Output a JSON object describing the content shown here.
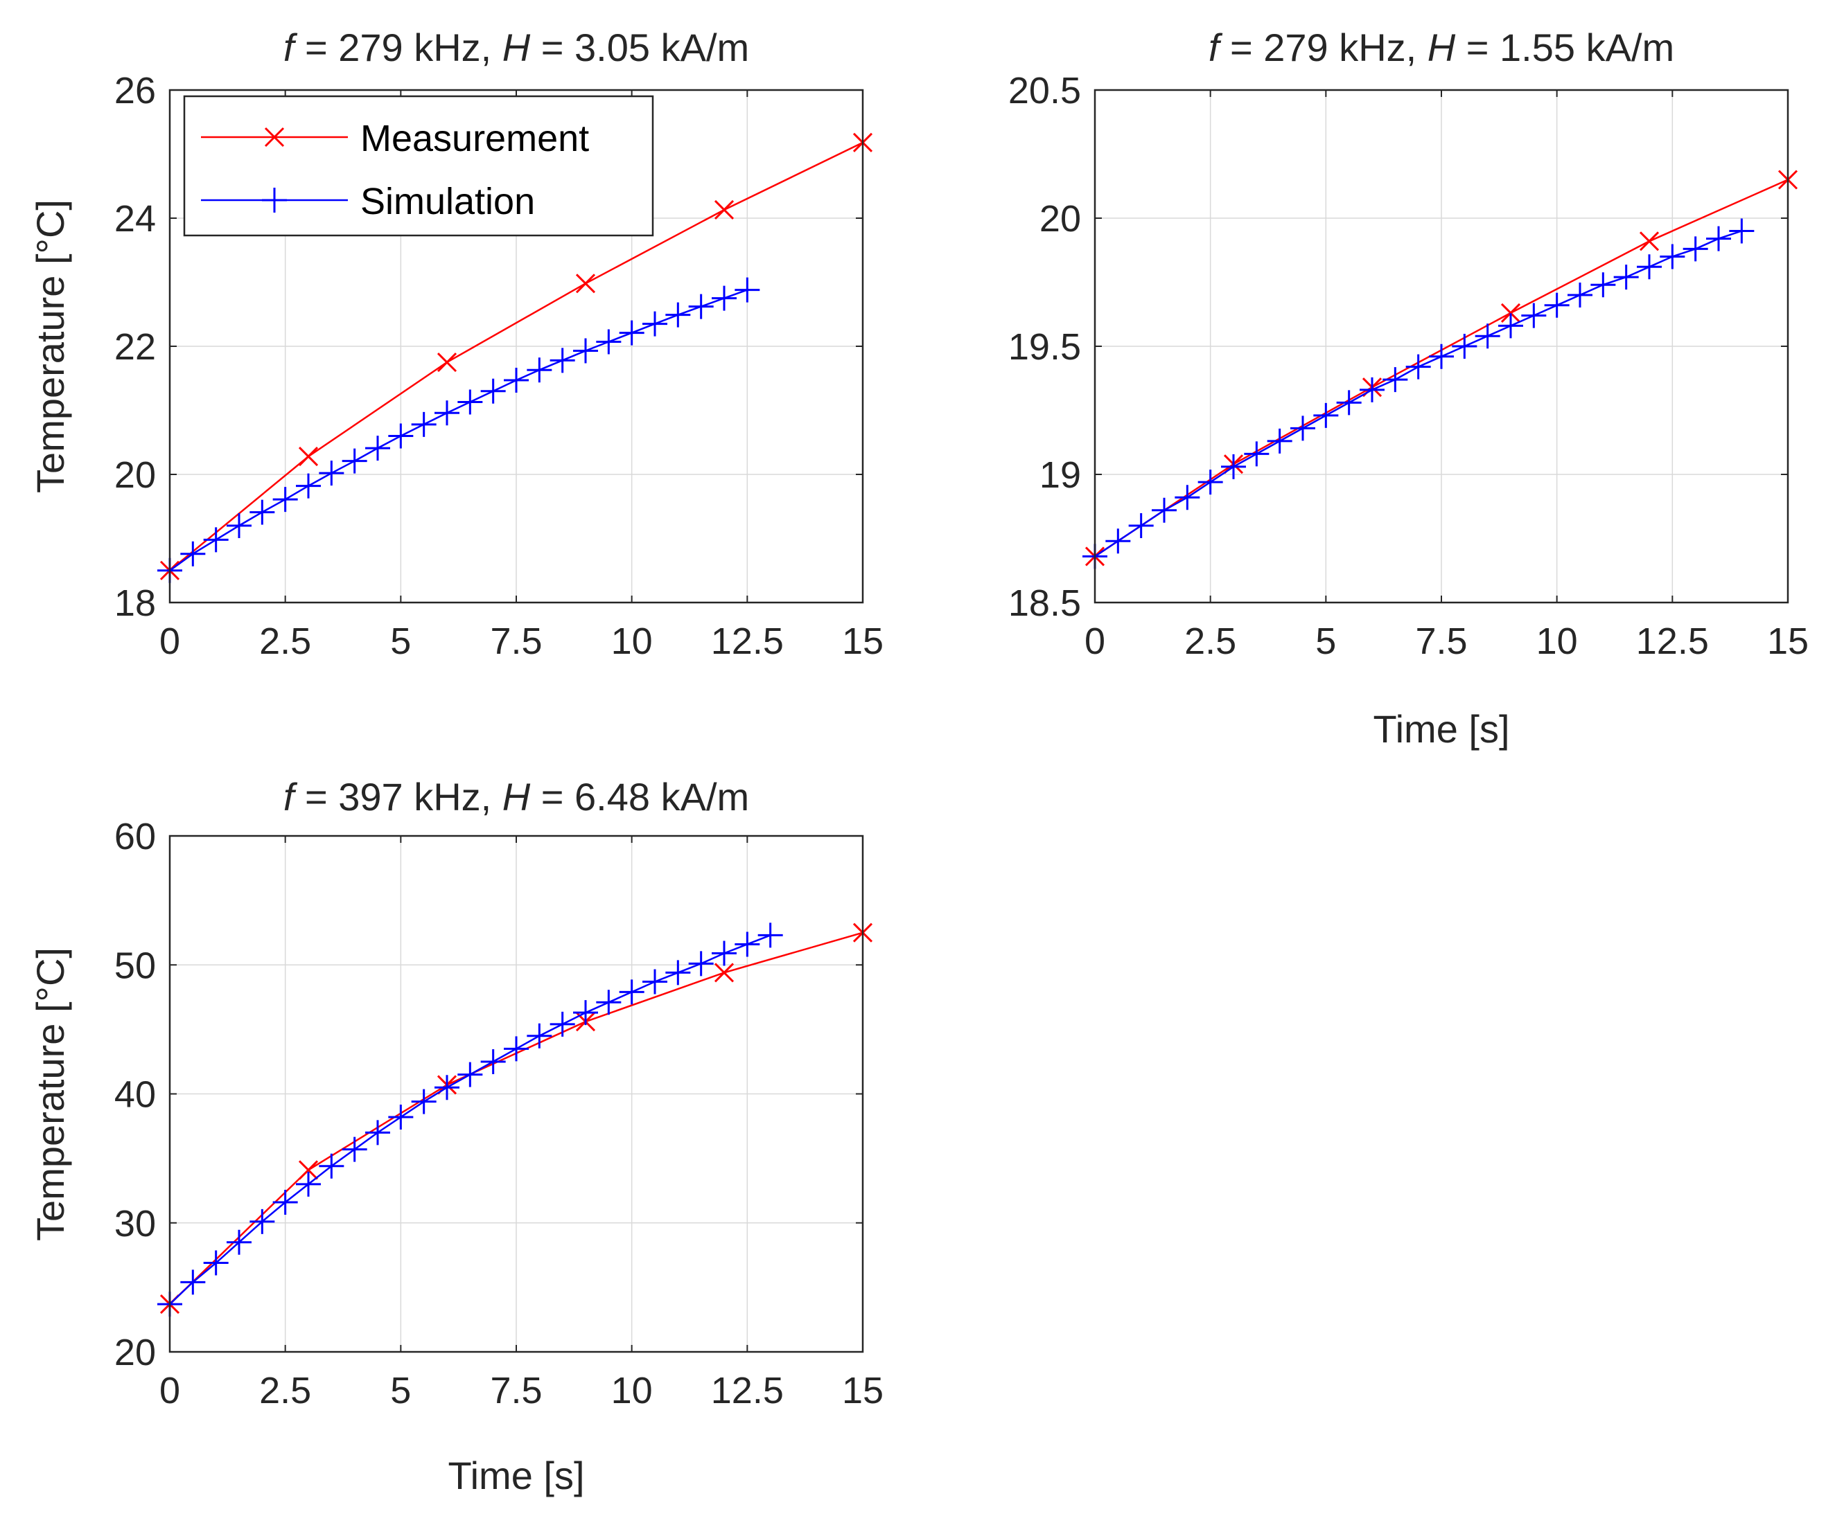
{
  "colors": {
    "measurement": "#ff0000",
    "simulation": "#0000ff",
    "axis": "#262626",
    "grid": "#d9d9d9"
  },
  "legend": {
    "measurement_label": "Measurement",
    "simulation_label": "Simulation"
  },
  "chart_data": [
    {
      "type": "line",
      "title": {
        "prefix": "f",
        "mid": " = 279 kHz, ",
        "var2": "H",
        "suffix": " = 3.05 kA/m"
      },
      "xlabel": "",
      "ylabel": "Temperature [°C]",
      "xlim": [
        0,
        15
      ],
      "ylim": [
        18,
        26
      ],
      "xticks": [
        0,
        2.5,
        5,
        7.5,
        10,
        12.5,
        15
      ],
      "xtick_labels": [
        "0",
        "2.5",
        "5",
        "7.5",
        "10",
        "12.5",
        "15"
      ],
      "yticks": [
        18,
        20,
        22,
        24,
        26
      ],
      "ytick_labels": [
        "18",
        "20",
        "22",
        "24",
        "26"
      ],
      "grid": true,
      "legend": true,
      "legend_position": "top-left",
      "series": [
        {
          "name": "Measurement",
          "marker": "x",
          "x": [
            0,
            3,
            6,
            9,
            12,
            15
          ],
          "y": [
            18.5,
            20.28,
            21.75,
            22.98,
            24.13,
            25.18
          ]
        },
        {
          "name": "Simulation",
          "marker": "+",
          "x": [
            0,
            0.5,
            1,
            1.5,
            2,
            2.5,
            3,
            3.5,
            4,
            4.5,
            5,
            5.5,
            6,
            6.5,
            7,
            7.5,
            8,
            8.5,
            9,
            9.5,
            10,
            10.5,
            11,
            11.5,
            12,
            12.5
          ],
          "y": [
            18.5,
            18.76,
            18.98,
            19.2,
            19.41,
            19.61,
            19.82,
            20.02,
            20.21,
            20.41,
            20.6,
            20.78,
            20.96,
            21.13,
            21.3,
            21.47,
            21.63,
            21.78,
            21.93,
            22.07,
            22.21,
            22.35,
            22.49,
            22.62,
            22.75,
            22.88
          ]
        }
      ]
    },
    {
      "type": "line",
      "title": {
        "prefix": "f",
        "mid": " = 279 kHz, ",
        "var2": "H",
        "suffix": " = 1.55 kA/m"
      },
      "xlabel": "Time [s]",
      "ylabel": "",
      "xlim": [
        0,
        15
      ],
      "ylim": [
        18.5,
        20.5
      ],
      "xticks": [
        0,
        2.5,
        5,
        7.5,
        10,
        12.5,
        15
      ],
      "xtick_labels": [
        "0",
        "2.5",
        "5",
        "7.5",
        "10",
        "12.5",
        "15"
      ],
      "yticks": [
        18.5,
        19,
        19.5,
        20,
        20.5
      ],
      "ytick_labels": [
        "18.5",
        "19",
        "19.5",
        "20",
        "20.5"
      ],
      "grid": true,
      "legend": false,
      "series": [
        {
          "name": "Measurement",
          "marker": "x",
          "x": [
            0,
            3,
            6,
            9,
            12,
            15
          ],
          "y": [
            18.68,
            19.04,
            19.34,
            19.63,
            19.91,
            20.15
          ]
        },
        {
          "name": "Simulation",
          "marker": "+",
          "x": [
            0,
            0.5,
            1,
            1.5,
            2,
            2.5,
            3,
            3.5,
            4,
            4.5,
            5,
            5.5,
            6,
            6.5,
            7,
            7.5,
            8,
            8.5,
            9,
            9.5,
            10,
            10.5,
            11,
            11.5,
            12,
            12.5,
            13,
            13.5,
            14
          ],
          "y": [
            18.68,
            18.74,
            18.8,
            18.86,
            18.91,
            18.97,
            19.03,
            19.08,
            19.13,
            19.18,
            19.23,
            19.28,
            19.33,
            19.37,
            19.42,
            19.46,
            19.5,
            19.54,
            19.58,
            19.62,
            19.66,
            19.7,
            19.74,
            19.77,
            19.81,
            19.85,
            19.88,
            19.92,
            19.95
          ]
        }
      ]
    },
    {
      "type": "line",
      "title": {
        "prefix": "f",
        "mid": " = 397 kHz, ",
        "var2": "H",
        "suffix": " = 6.48 kA/m"
      },
      "xlabel": "Time [s]",
      "ylabel": "Temperature [°C]",
      "xlim": [
        0,
        15
      ],
      "ylim": [
        20,
        60
      ],
      "xticks": [
        0,
        2.5,
        5,
        7.5,
        10,
        12.5,
        15
      ],
      "xtick_labels": [
        "0",
        "2.5",
        "5",
        "7.5",
        "10",
        "12.5",
        "15"
      ],
      "yticks": [
        20,
        30,
        40,
        50,
        60
      ],
      "ytick_labels": [
        "20",
        "30",
        "40",
        "50",
        "60"
      ],
      "grid": true,
      "legend": false,
      "series": [
        {
          "name": "Measurement",
          "marker": "x",
          "x": [
            0,
            3,
            6,
            9,
            12,
            15
          ],
          "y": [
            23.7,
            34.1,
            40.7,
            45.6,
            49.4,
            52.5
          ]
        },
        {
          "name": "Simulation",
          "marker": "+",
          "x": [
            0,
            0.5,
            1,
            1.5,
            2,
            2.5,
            3,
            3.5,
            4,
            4.5,
            5,
            5.5,
            6,
            6.5,
            7,
            7.5,
            8,
            8.5,
            9,
            9.5,
            10,
            10.5,
            11,
            11.5,
            12,
            12.5,
            13
          ],
          "y": [
            23.7,
            25.4,
            26.9,
            28.5,
            30.1,
            31.6,
            33.0,
            34.4,
            35.7,
            37.0,
            38.2,
            39.4,
            40.5,
            41.5,
            42.5,
            43.5,
            44.5,
            45.4,
            46.3,
            47.1,
            47.9,
            48.7,
            49.4,
            50.1,
            50.9,
            51.6,
            52.3
          ]
        }
      ]
    }
  ]
}
